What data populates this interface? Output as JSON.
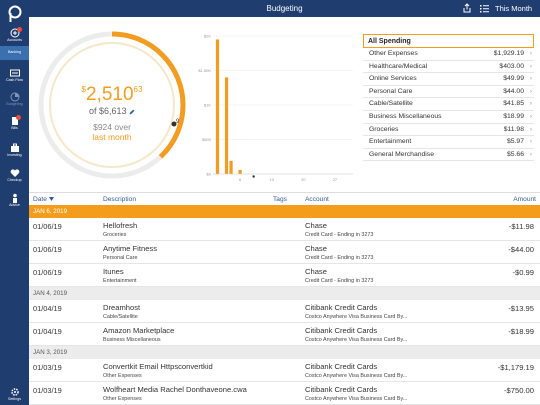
{
  "topbar": {
    "title": "Budgeting",
    "period": "This Month"
  },
  "sidebar": {
    "items": [
      {
        "label": "Accounts"
      },
      {
        "label": "Banking"
      },
      {
        "label": "Cash Flow"
      },
      {
        "label": "Budgeting"
      },
      {
        "label": "Bills"
      },
      {
        "label": "Investing"
      },
      {
        "label": "Checkup"
      },
      {
        "label": "Advice"
      },
      {
        "label": "Settings"
      }
    ]
  },
  "summary": {
    "spent_whole": "2,510",
    "spent_cents": "63",
    "currency": "$",
    "budget": "of $6,613",
    "over_amount": "$924 over",
    "over_label": "last month",
    "day_marker": "9",
    "progress_fraction": 0.38
  },
  "chart_data": {
    "type": "bar",
    "y_ticks": [
      "$2K",
      "$1.50K",
      "$1K",
      "$500",
      "$0"
    ],
    "x_ticks": [
      "6",
      "13",
      "20",
      "27"
    ],
    "ylim": [
      0,
      2000
    ],
    "xlim": [
      0,
      31
    ],
    "bars": [
      {
        "day": 1,
        "value": 1950
      },
      {
        "day": 3,
        "value": 1400
      },
      {
        "day": 4,
        "value": 190
      },
      {
        "day": 6,
        "value": 60
      }
    ]
  },
  "categories": {
    "header": "All Spending",
    "items": [
      {
        "label": "Other Expenses",
        "amount": "$1,929.19"
      },
      {
        "label": "Healthcare/Medical",
        "amount": "$403.00"
      },
      {
        "label": "Online Services",
        "amount": "$49.99"
      },
      {
        "label": "Personal Care",
        "amount": "$44.00"
      },
      {
        "label": "Cable/Satellite",
        "amount": "$41.85"
      },
      {
        "label": "Business Miscellaneous",
        "amount": "$18.99"
      },
      {
        "label": "Groceries",
        "amount": "$11.98"
      },
      {
        "label": "Entertainment",
        "amount": "$5.97"
      },
      {
        "label": "General Merchandise",
        "amount": "$5.66"
      }
    ]
  },
  "table": {
    "headers": {
      "date": "Date",
      "description": "Description",
      "tags": "Tags",
      "account": "Account",
      "amount": "Amount"
    },
    "groups": [
      {
        "date": "JAN 6, 2019",
        "highlight": true,
        "rows": [
          {
            "date": "01/06/19",
            "merchant": "Hellofresh",
            "category": "Groceries",
            "account": "Chase",
            "account_note": "Credit Card - Ending in 3273",
            "amount": "-$11.98"
          },
          {
            "date": "01/06/19",
            "merchant": "Anytime Fitness",
            "category": "Personal Care",
            "account": "Chase",
            "account_note": "Credit Card - Ending in 3273",
            "amount": "-$44.00"
          },
          {
            "date": "01/06/19",
            "merchant": "Itunes",
            "category": "Entertainment",
            "account": "Chase",
            "account_note": "Credit Card - Ending in 3273",
            "amount": "-$0.99"
          }
        ]
      },
      {
        "date": "JAN 4, 2019",
        "highlight": false,
        "rows": [
          {
            "date": "01/04/19",
            "merchant": "Dreamhost",
            "category": "Cable/Satellite",
            "account": "Citibank Credit Cards",
            "account_note": "Costco Anywhere Visa Business Card By...",
            "amount": "-$13.95"
          },
          {
            "date": "01/04/19",
            "merchant": "Amazon Marketplace",
            "category": "Business Miscellaneous",
            "account": "Citibank Credit Cards",
            "account_note": "Costco Anywhere Visa Business Card By...",
            "amount": "-$18.99"
          }
        ]
      },
      {
        "date": "JAN 3, 2019",
        "highlight": false,
        "rows": [
          {
            "date": "01/03/19",
            "merchant": "Convertkit Email Httpsconvertkid",
            "category": "Other Expenses",
            "account": "Citibank Credit Cards",
            "account_note": "Costco Anywhere Visa Business Card By...",
            "amount": "-$1,179.19"
          },
          {
            "date": "01/03/19",
            "merchant": "Wolfheart Media Rachel Donthaveone.cwa",
            "category": "Other Expenses",
            "account": "Citibank Credit Cards",
            "account_note": "Costco Anywhere Visa Business Card By...",
            "amount": "-$750.00"
          }
        ]
      }
    ]
  }
}
